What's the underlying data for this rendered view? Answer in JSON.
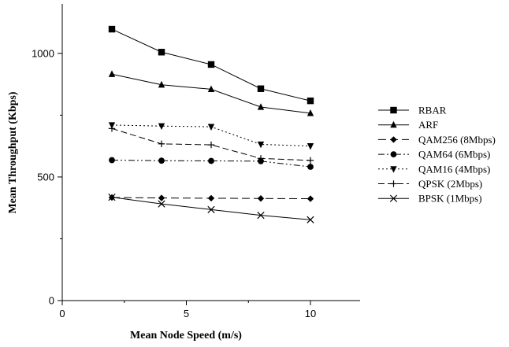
{
  "chart_data": {
    "type": "line",
    "title": "",
    "xlabel": "Mean Node Speed (m/s)",
    "ylabel": "Mean Throughput (Kbps)",
    "xlim": [
      0,
      12
    ],
    "ylim": [
      0,
      1200
    ],
    "x_ticks": [
      0,
      5,
      10
    ],
    "y_ticks": [
      0,
      500,
      1000
    ],
    "grid": false,
    "legend_position": "right",
    "x": [
      2,
      4,
      6,
      8,
      10
    ],
    "series": [
      {
        "name": "RBAR",
        "marker": "square",
        "dash": "solid",
        "values": [
          1098,
          1005,
          955,
          857,
          808
        ]
      },
      {
        "name": "ARF",
        "marker": "triangle-up",
        "dash": "solid",
        "values": [
          916,
          873,
          855,
          783,
          758
        ]
      },
      {
        "name": "QAM256 (8Mbps)",
        "marker": "diamond",
        "dash": "long-dash",
        "values": [
          417,
          415,
          414,
          413,
          412
        ]
      },
      {
        "name": "QAM64 (6Mbps)",
        "marker": "circle",
        "dash": "dash-dot-dot",
        "values": [
          568,
          566,
          565,
          564,
          541
        ]
      },
      {
        "name": "QAM16 (4Mbps)",
        "marker": "triangle-down",
        "dash": "dotted",
        "values": [
          710,
          706,
          703,
          632,
          625
        ]
      },
      {
        "name": "QPSK (2Mbps)",
        "marker": "plus",
        "dash": "dashed",
        "values": [
          696,
          634,
          630,
          575,
          567
        ]
      },
      {
        "name": "BPSK (1Mbps)",
        "marker": "x",
        "dash": "solid",
        "values": [
          418,
          391,
          368,
          345,
          327
        ]
      }
    ]
  }
}
